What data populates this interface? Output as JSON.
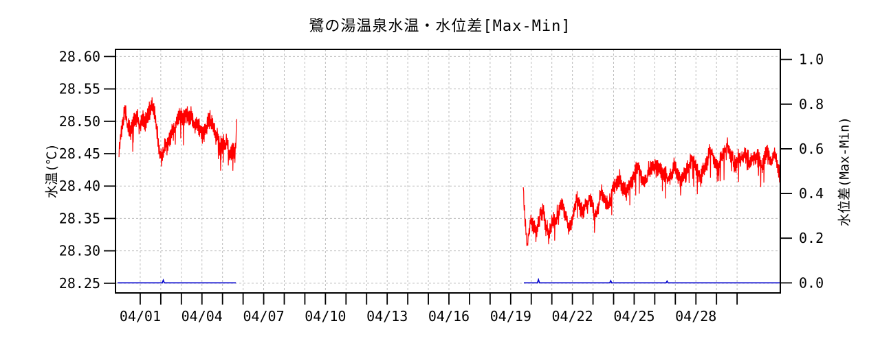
{
  "title": "鷺の湯温泉水温・水位差[Max-Min]",
  "colors": {
    "temperature_line": "#ff0000",
    "level_diff_line": "#0000cc",
    "grid": "#bdbdbd",
    "axis": "#000000",
    "background": "#ffffff"
  },
  "axes": {
    "x": {
      "tick_days": [
        0,
        1,
        2,
        3,
        4,
        5,
        6,
        7,
        8,
        9,
        10,
        11,
        12,
        13,
        14,
        15,
        16,
        17,
        18,
        19,
        20,
        21,
        22,
        23,
        24,
        25,
        26,
        27,
        28,
        29
      ],
      "label_days": [
        0,
        3,
        6,
        9,
        12,
        15,
        18,
        21,
        24,
        27
      ],
      "labels": [
        "04/01",
        "04/04",
        "04/07",
        "04/10",
        "04/13",
        "04/16",
        "04/19",
        "04/22",
        "04/25",
        "04/28"
      ],
      "domain_days": [
        -1.2,
        31.1
      ]
    },
    "y_left": {
      "label": "水温(℃)",
      "values": [
        28.25,
        28.3,
        28.35,
        28.4,
        28.45,
        28.5,
        28.55,
        28.6
      ],
      "labels": [
        "28.25",
        "28.30",
        "28.35",
        "28.40",
        "28.45",
        "28.50",
        "28.55",
        "28.60"
      ],
      "range": [
        28.235,
        28.611
      ]
    },
    "y_right": {
      "label": "水位差(Max-Min)",
      "values": [
        0.0,
        0.2,
        0.4,
        0.6,
        0.8,
        1.0
      ],
      "labels": [
        "0.0",
        "0.2",
        "0.4",
        "0.6",
        "0.8",
        "1.0"
      ],
      "range": [
        -0.045,
        1.045
      ]
    }
  },
  "chart_data": {
    "type": "line",
    "title": "鷺の湯温泉水温・水位差[Max-Min]",
    "x_unit": "days since 04/01 00:00",
    "grid": "on",
    "series": [
      {
        "name": "水温",
        "axis": "left",
        "color": "#ff0000",
        "style": "dense-noisy-line",
        "segments": [
          {
            "seed": 7,
            "noise_amp": 0.014,
            "spike_prob": 0.045,
            "spike_max": 0.028,
            "step_days": 0.022,
            "anchors": [
              [
                -1.03,
                28.455
              ],
              [
                -0.9,
                28.49
              ],
              [
                -0.75,
                28.51
              ],
              [
                -0.6,
                28.49
              ],
              [
                -0.45,
                28.47
              ],
              [
                -0.3,
                28.49
              ],
              [
                -0.15,
                28.5
              ],
              [
                0,
                28.49
              ],
              [
                0.15,
                28.505
              ],
              [
                0.3,
                28.5
              ],
              [
                0.45,
                28.515
              ],
              [
                0.6,
                28.52
              ],
              [
                0.75,
                28.5
              ],
              [
                0.9,
                28.465
              ],
              [
                1.05,
                28.45
              ],
              [
                1.2,
                28.475
              ],
              [
                1.35,
                28.465
              ],
              [
                1.5,
                28.475
              ],
              [
                1.65,
                28.48
              ],
              [
                1.8,
                28.49
              ],
              [
                1.95,
                28.5
              ],
              [
                2.1,
                28.51
              ],
              [
                2.25,
                28.52
              ],
              [
                2.4,
                28.515
              ],
              [
                2.55,
                28.5
              ],
              [
                2.7,
                28.49
              ],
              [
                2.85,
                28.478
              ],
              [
                3,
                28.47
              ],
              [
                3.15,
                28.49
              ],
              [
                3.3,
                28.505
              ],
              [
                3.45,
                28.5
              ],
              [
                3.6,
                28.49
              ],
              [
                3.75,
                28.477
              ],
              [
                3.9,
                28.462
              ],
              [
                4.05,
                28.47
              ],
              [
                4.2,
                28.465
              ],
              [
                4.35,
                28.455
              ],
              [
                4.5,
                28.462
              ],
              [
                4.6,
                28.442
              ],
              [
                4.68,
                28.49
              ],
              [
                4.71,
                28.548
              ]
            ]
          },
          {
            "seed": 13,
            "noise_amp": 0.013,
            "spike_prob": 0.05,
            "spike_max": 0.032,
            "step_days": 0.022,
            "anchors": [
              [
                18.61,
                28.405
              ],
              [
                18.68,
                28.36
              ],
              [
                18.8,
                28.312
              ],
              [
                18.95,
                28.35
              ],
              [
                19.1,
                28.34
              ],
              [
                19.25,
                28.322
              ],
              [
                19.4,
                28.35
              ],
              [
                19.55,
                28.36
              ],
              [
                19.7,
                28.34
              ],
              [
                19.85,
                28.325
              ],
              [
                20,
                28.35
              ],
              [
                20.15,
                28.36
              ],
              [
                20.3,
                28.365
              ],
              [
                20.45,
                28.372
              ],
              [
                20.6,
                28.365
              ],
              [
                20.75,
                28.35
              ],
              [
                20.9,
                28.335
              ],
              [
                21.05,
                28.36
              ],
              [
                21.2,
                28.38
              ],
              [
                21.35,
                28.37
              ],
              [
                21.5,
                28.36
              ],
              [
                21.65,
                28.375
              ],
              [
                21.8,
                28.382
              ],
              [
                21.95,
                28.375
              ],
              [
                22.1,
                28.352
              ],
              [
                22.25,
                28.37
              ],
              [
                22.4,
                28.39
              ],
              [
                22.55,
                28.385
              ],
              [
                22.7,
                28.38
              ],
              [
                22.85,
                28.39
              ],
              [
                23,
                28.4
              ],
              [
                23.15,
                28.405
              ],
              [
                23.3,
                28.412
              ],
              [
                23.45,
                28.4
              ],
              [
                23.6,
                28.39
              ],
              [
                23.75,
                28.396
              ],
              [
                23.9,
                28.41
              ],
              [
                24.05,
                28.415
              ],
              [
                24.2,
                28.42
              ],
              [
                24.35,
                28.41
              ],
              [
                24.5,
                28.4
              ],
              [
                24.65,
                28.41
              ],
              [
                24.8,
                28.42
              ],
              [
                24.95,
                28.425
              ],
              [
                25.1,
                28.43
              ],
              [
                25.25,
                28.43
              ],
              [
                25.4,
                28.415
              ],
              [
                25.55,
                28.41
              ],
              [
                25.7,
                28.42
              ],
              [
                25.85,
                28.425
              ],
              [
                26,
                28.43
              ],
              [
                26.15,
                28.42
              ],
              [
                26.3,
                28.408
              ],
              [
                26.45,
                28.42
              ],
              [
                26.6,
                28.43
              ],
              [
                26.75,
                28.435
              ],
              [
                26.9,
                28.44
              ],
              [
                27.05,
                28.43
              ],
              [
                27.2,
                28.42
              ],
              [
                27.35,
                28.43
              ],
              [
                27.5,
                28.44
              ],
              [
                27.65,
                28.447
              ],
              [
                27.8,
                28.44
              ],
              [
                27.95,
                28.43
              ],
              [
                28.1,
                28.422
              ],
              [
                28.25,
                28.44
              ],
              [
                28.4,
                28.455
              ],
              [
                28.55,
                28.458
              ],
              [
                28.7,
                28.45
              ],
              [
                28.85,
                28.44
              ],
              [
                29,
                28.432
              ],
              [
                29.15,
                28.44
              ],
              [
                29.3,
                28.447
              ],
              [
                29.45,
                28.44
              ],
              [
                29.6,
                28.43
              ],
              [
                29.75,
                28.44
              ],
              [
                29.9,
                28.446
              ],
              [
                30.05,
                28.45
              ],
              [
                30.2,
                28.44
              ],
              [
                30.35,
                28.446
              ],
              [
                30.5,
                28.45
              ],
              [
                30.65,
                28.44
              ],
              [
                30.8,
                28.447
              ],
              [
                30.95,
                28.435
              ],
              [
                31.05,
                28.43
              ],
              [
                31.1,
                28.4
              ]
            ]
          }
        ]
      },
      {
        "name": "水位差(Max-Min)",
        "axis": "right",
        "color": "#0000cc",
        "style": "flat-line",
        "segments": [
          {
            "start": -1.1,
            "end": 4.65,
            "value": 0.0,
            "blips": [
              [
                1.12,
                0.012
              ]
            ]
          },
          {
            "start": 18.64,
            "end": 31.1,
            "value": 0.0,
            "blips": [
              [
                19.35,
                0.015
              ],
              [
                22.86,
                0.01
              ],
              [
                25.6,
                0.008
              ]
            ]
          }
        ]
      }
    ]
  }
}
